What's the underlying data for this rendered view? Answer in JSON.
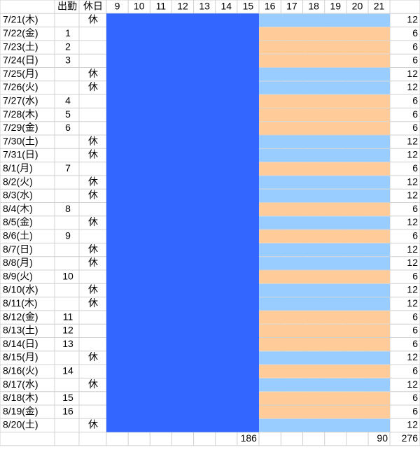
{
  "header": {
    "work": "出勤",
    "holiday": "休日",
    "hours": [
      9,
      10,
      11,
      12,
      13,
      14,
      15,
      16,
      17,
      18,
      19,
      20,
      21
    ]
  },
  "rows": [
    [
      "7/21(木)",
      null,
      "休",
      12
    ],
    [
      "7/22(金)",
      1,
      null,
      6
    ],
    [
      "7/23(土)",
      2,
      null,
      6
    ],
    [
      "7/24(日)",
      3,
      null,
      6
    ],
    [
      "7/25(月)",
      null,
      "休",
      12
    ],
    [
      "7/26(火)",
      null,
      "休",
      12
    ],
    [
      "7/27(水)",
      4,
      null,
      6
    ],
    [
      "7/28(木)",
      5,
      null,
      6
    ],
    [
      "7/29(金)",
      6,
      null,
      6
    ],
    [
      "7/30(土)",
      null,
      "休",
      12
    ],
    [
      "7/31(日)",
      null,
      "休",
      12
    ],
    [
      "8/1(月)",
      7,
      null,
      6
    ],
    [
      "8/2(火)",
      null,
      "休",
      12
    ],
    [
      "8/3(水)",
      null,
      "休",
      12
    ],
    [
      "8/4(木)",
      8,
      null,
      6
    ],
    [
      "8/5(金)",
      null,
      "休",
      12
    ],
    [
      "8/6(土)",
      9,
      null,
      6
    ],
    [
      "8/7(日)",
      null,
      "休",
      12
    ],
    [
      "8/8(月)",
      null,
      "休",
      12
    ],
    [
      "8/9(火)",
      10,
      null,
      6
    ],
    [
      "8/10(水)",
      null,
      "休",
      12
    ],
    [
      "8/11(木)",
      null,
      "休",
      12
    ],
    [
      "8/12(金)",
      11,
      null,
      6
    ],
    [
      "8/13(土)",
      12,
      null,
      6
    ],
    [
      "8/14(日)",
      13,
      null,
      6
    ],
    [
      "8/15(月)",
      null,
      "休",
      12
    ],
    [
      "8/16(火)",
      14,
      null,
      6
    ],
    [
      "8/17(水)",
      null,
      "休",
      12
    ],
    [
      "8/18(木)",
      15,
      null,
      6
    ],
    [
      "8/19(金)",
      16,
      null,
      6
    ],
    [
      "8/20(土)",
      null,
      "休",
      12
    ]
  ],
  "totals": {
    "block": 186,
    "holiday_block": 90,
    "all": 276
  },
  "colors": {
    "block": "#3366ff",
    "holiday": "#99ccff",
    "work": "#ffcc99"
  }
}
